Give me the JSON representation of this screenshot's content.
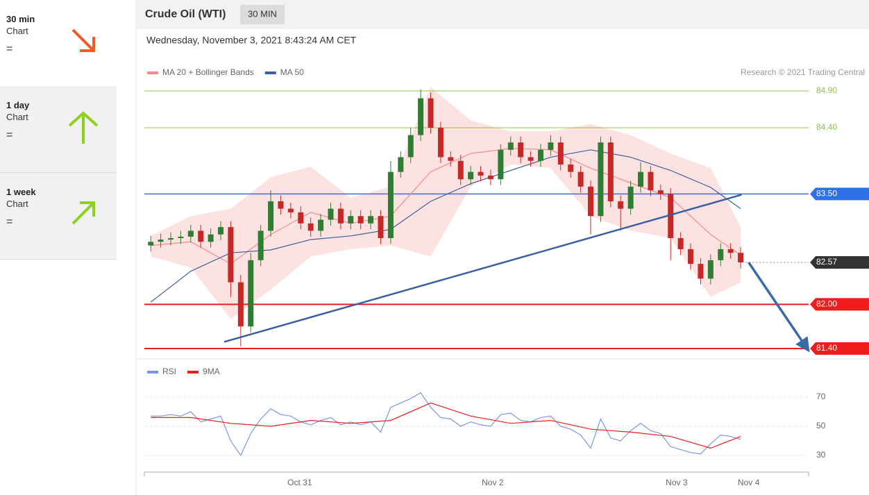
{
  "sidebar": {
    "items": [
      {
        "period": "30 min",
        "label": "Chart",
        "symbol": "="
      },
      {
        "period": "1 day",
        "label": "Chart",
        "symbol": "="
      },
      {
        "period": "1 week",
        "label": "Chart",
        "symbol": "="
      }
    ]
  },
  "header": {
    "instrument": "Crude Oil (WTI)",
    "timeframe": "30 MIN",
    "timestamp": "Wednesday, November 3, 2021 8:43:24 AM CET"
  },
  "chart_data": [
    {
      "type": "candlestick",
      "source": "Research © 2021 Trading Central",
      "up_color": "#2e7d32",
      "down_color": "#c62828",
      "xlim": [
        -0.5,
        65.8
      ],
      "ylim": [
        81.3,
        85.0
      ],
      "open": [
        82.8,
        82.85,
        82.88,
        82.9,
        82.92,
        83.0,
        82.85,
        82.95,
        83.05,
        82.3,
        81.7,
        82.6,
        83.0,
        83.4,
        83.3,
        83.25,
        83.1,
        83.0,
        83.15,
        83.3,
        83.1,
        83.2,
        83.1,
        83.2,
        82.9,
        83.8,
        84.0,
        84.3,
        84.8,
        84.4,
        84.0,
        83.95,
        83.7,
        83.8,
        83.75,
        83.7,
        84.1,
        84.2,
        84.0,
        83.95,
        84.1,
        84.2,
        83.9,
        83.8,
        83.6,
        83.2,
        84.2,
        83.4,
        83.3,
        83.6,
        83.8,
        83.55,
        83.5,
        82.9,
        82.75,
        82.55,
        82.35,
        82.6,
        82.75,
        82.7
      ],
      "high": [
        82.93,
        82.96,
        82.98,
        83.0,
        83.08,
        83.08,
        83.03,
        83.13,
        83.13,
        82.4,
        82.7,
        83.08,
        83.55,
        83.48,
        83.38,
        83.33,
        83.18,
        83.23,
        83.38,
        83.38,
        83.28,
        83.28,
        83.28,
        83.28,
        83.95,
        84.08,
        84.4,
        84.92,
        84.88,
        84.48,
        84.08,
        84.03,
        83.88,
        83.88,
        83.83,
        84.18,
        84.28,
        84.28,
        84.08,
        84.18,
        84.3,
        84.28,
        83.98,
        83.88,
        83.68,
        84.28,
        84.28,
        83.48,
        83.68,
        83.93,
        83.88,
        83.63,
        83.58,
        82.98,
        82.83,
        82.63,
        82.68,
        82.83,
        82.83,
        82.78
      ],
      "low": [
        82.72,
        82.77,
        82.8,
        82.82,
        82.84,
        82.77,
        82.77,
        82.87,
        82.1,
        81.43,
        81.62,
        82.52,
        82.92,
        83.22,
        83.17,
        83.02,
        82.92,
        82.92,
        83.07,
        83.02,
        83.02,
        83.02,
        83.02,
        82.82,
        82.82,
        83.72,
        83.92,
        84.22,
        84.32,
        83.92,
        83.87,
        83.62,
        83.62,
        83.67,
        83.62,
        83.62,
        84.02,
        83.92,
        83.87,
        83.87,
        84.02,
        83.82,
        83.72,
        83.52,
        82.95,
        83.12,
        83.32,
        83.0,
        83.22,
        83.52,
        83.47,
        83.42,
        82.6,
        82.67,
        82.47,
        82.27,
        82.27,
        82.52,
        82.62,
        82.49
      ],
      "close": [
        82.85,
        82.88,
        82.9,
        82.92,
        83.0,
        82.85,
        82.95,
        83.05,
        82.3,
        81.7,
        82.6,
        83.0,
        83.4,
        83.3,
        83.25,
        83.1,
        83.0,
        83.15,
        83.3,
        83.1,
        83.2,
        83.1,
        83.2,
        82.9,
        83.8,
        84.0,
        84.3,
        84.8,
        84.4,
        84.0,
        83.95,
        83.7,
        83.8,
        83.75,
        83.7,
        84.1,
        84.2,
        84.0,
        83.95,
        84.1,
        84.2,
        83.9,
        83.8,
        83.6,
        83.2,
        84.2,
        83.4,
        83.3,
        83.6,
        83.8,
        83.55,
        83.5,
        82.9,
        82.75,
        82.55,
        82.35,
        82.6,
        82.75,
        82.7,
        82.57
      ],
      "series": [
        {
          "name": "MA 20 + Bollinger Bands",
          "color": "#f28b8b",
          "band_color": "#fde2e2",
          "x": [
            0,
            4,
            8,
            12,
            16,
            20,
            24,
            28,
            32,
            36,
            40,
            44,
            48,
            52,
            56,
            59
          ],
          "values": [
            82.8,
            82.85,
            82.55,
            82.95,
            83.25,
            83.1,
            83.2,
            83.8,
            84.05,
            84.12,
            84.1,
            83.85,
            83.65,
            83.45,
            82.95,
            82.67
          ],
          "upper": [
            82.93,
            83.2,
            83.3,
            83.73,
            83.87,
            83.45,
            83.6,
            84.95,
            84.5,
            84.35,
            84.35,
            84.45,
            84.3,
            84.05,
            83.85,
            83.05
          ],
          "lower": [
            82.65,
            82.5,
            81.8,
            82.2,
            82.65,
            82.75,
            82.8,
            82.65,
            83.6,
            83.9,
            83.85,
            83.2,
            83.0,
            82.9,
            82.1,
            82.3
          ]
        },
        {
          "name": "MA 50",
          "color": "#3a5f9e",
          "x": [
            0,
            4,
            8,
            12,
            16,
            20,
            24,
            28,
            32,
            36,
            40,
            44,
            48,
            52,
            56,
            59
          ],
          "values": [
            82.03,
            82.45,
            82.7,
            82.74,
            82.88,
            82.93,
            83.02,
            83.4,
            83.64,
            83.82,
            84.0,
            84.1,
            84.0,
            83.82,
            83.59,
            83.3
          ]
        }
      ],
      "levels": [
        {
          "value": 84.9,
          "label": "84.90",
          "color": "#8bc34a",
          "box": false,
          "dotted": false,
          "width": 1
        },
        {
          "value": 84.4,
          "label": "84.40",
          "color": "#8bc34a",
          "box": false,
          "dotted": false,
          "width": 1
        },
        {
          "value": 83.5,
          "label": "83.50",
          "color": "#2f6fe8",
          "box": true,
          "dotted": false,
          "width": 1.5
        },
        {
          "value": 82.57,
          "label": "82.57",
          "color": "#333333",
          "box": true,
          "dotted": true,
          "width": 1
        },
        {
          "value": 82.0,
          "label": "82.00",
          "color": "#ee1c1c",
          "box": true,
          "dotted": false,
          "width": 2
        },
        {
          "value": 81.4,
          "label": "81.40",
          "color": "#ee1c1c",
          "box": true,
          "dotted": false,
          "width": 2
        }
      ],
      "trendline": {
        "x": [
          7.35,
          59.1
        ],
        "y": [
          81.49,
          83.49
        ],
        "color": "#3a5f9e"
      },
      "arrow": {
        "x": [
          59.8,
          65.5
        ],
        "y": [
          82.57,
          81.43
        ],
        "color": "#3a6aa8"
      }
    },
    {
      "type": "line",
      "xlim": [
        -0.5,
        65.8
      ],
      "ylim": [
        20,
        85
      ],
      "yticks": [
        70,
        50,
        30
      ],
      "grid": true,
      "xticks": [
        {
          "value": 14.9,
          "label": "Oct 31"
        },
        {
          "value": 34.2,
          "label": "Nov 2"
        },
        {
          "value": 52.6,
          "label": "Nov 3"
        },
        {
          "value": 59.8,
          "label": "Nov 4"
        }
      ],
      "series": [
        {
          "name": "RSI",
          "color": "#7b96e6",
          "values": [
            57,
            57,
            58,
            57,
            60,
            53,
            55,
            57,
            40,
            30,
            45,
            55,
            62,
            58,
            57,
            53,
            51,
            54,
            56,
            51,
            53,
            51,
            53,
            46,
            63,
            66,
            69,
            73,
            63,
            56,
            55,
            50,
            53,
            51,
            50,
            58,
            59,
            54,
            53,
            56,
            57,
            50,
            48,
            44,
            35,
            55,
            42,
            40,
            47,
            52,
            47,
            45,
            36,
            34,
            32,
            31,
            38,
            44,
            43,
            41
          ]
        },
        {
          "name": "9MA",
          "color": "#ee1c1c",
          "x": [
            0,
            4,
            8,
            12,
            16,
            20,
            24,
            28,
            32,
            36,
            40,
            44,
            48,
            52,
            56,
            59
          ],
          "values": [
            56,
            56,
            52,
            50,
            54,
            52,
            54,
            66,
            57,
            52,
            54,
            48,
            46,
            43,
            35,
            43
          ]
        }
      ]
    }
  ]
}
